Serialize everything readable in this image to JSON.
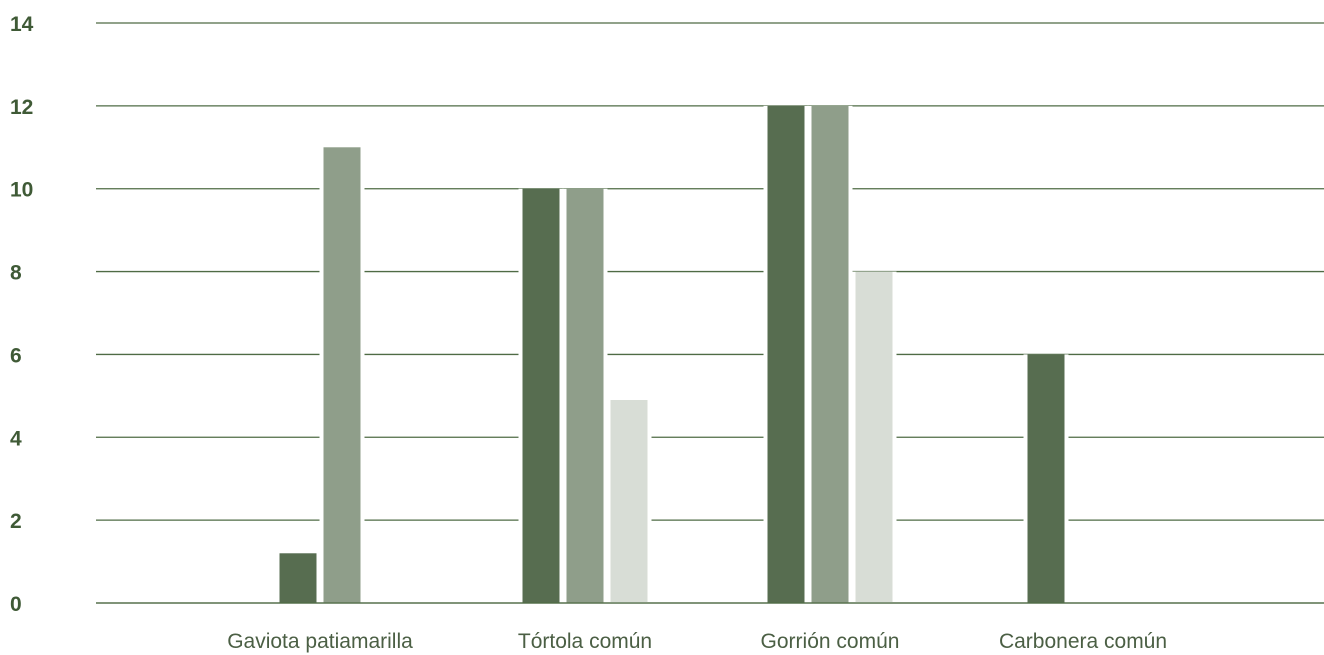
{
  "chart_data": {
    "type": "bar",
    "categories": [
      "Gaviota patiamarilla",
      "Tórtola común",
      "Gorrión común",
      "Carbonera común"
    ],
    "series": [
      {
        "values": [
          1.2,
          10,
          12,
          6
        ],
        "color": "#576d50"
      },
      {
        "values": [
          11,
          10,
          12,
          0
        ],
        "color": "#8f9e8a"
      },
      {
        "values": [
          0,
          4.9,
          8,
          0
        ],
        "color": "#d8ddd6"
      }
    ],
    "y_ticks": [
      0,
      2,
      4,
      6,
      8,
      10,
      12,
      14
    ],
    "ylim": [
      0,
      14
    ],
    "grid": true,
    "axis_color": "#4f6b45",
    "tick_color": "#3f5a36",
    "label_color": "#4b5f44"
  }
}
